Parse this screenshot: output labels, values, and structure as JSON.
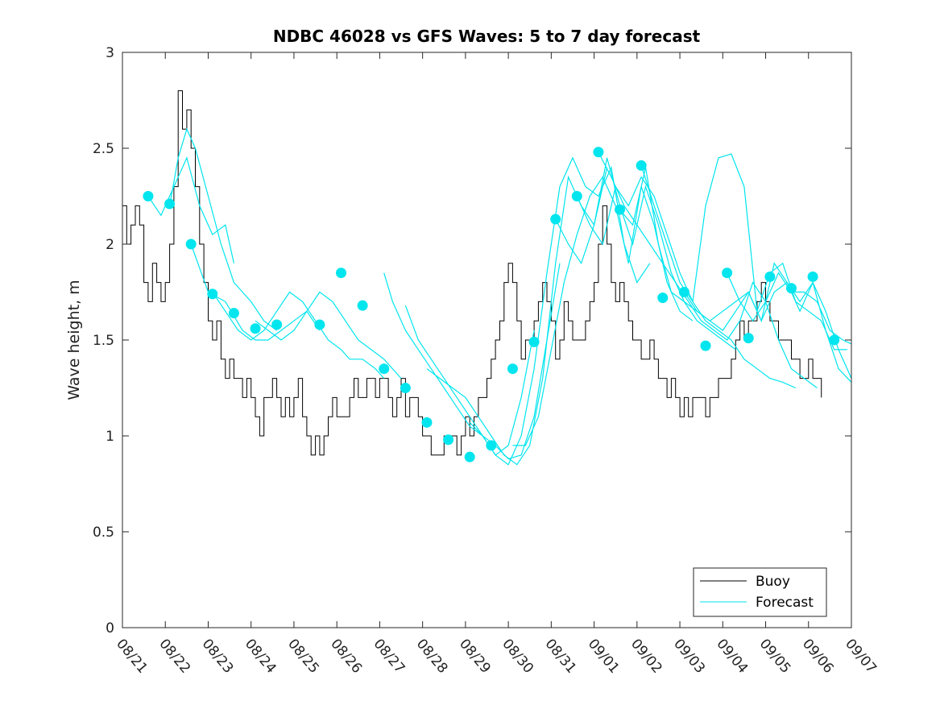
{
  "chart_data": {
    "type": "line",
    "title": "NDBC 46028 vs GFS Waves: 5 to 7 day forecast",
    "xlabel": "",
    "ylabel": "Wave height, m",
    "xlim": [
      0,
      17
    ],
    "ylim": [
      0,
      3
    ],
    "x_unit": "days since 08/21",
    "x_ticks": [
      0,
      1,
      2,
      3,
      4,
      5,
      6,
      7,
      8,
      9,
      10,
      11,
      12,
      13,
      14,
      15,
      16,
      17
    ],
    "x_tick_labels": [
      "08/21",
      "08/22",
      "08/23",
      "08/24",
      "08/25",
      "08/26",
      "08/27",
      "08/28",
      "08/29",
      "08/30",
      "08/31",
      "09/01",
      "09/02",
      "09/03",
      "09/04",
      "09/05",
      "09/06",
      "09/07"
    ],
    "y_ticks": [
      0,
      0.5,
      1,
      1.5,
      2,
      2.5,
      3
    ],
    "y_tick_labels": [
      "0",
      "0.5",
      "1",
      "1.5",
      "2",
      "2.5",
      "3"
    ],
    "grid": false,
    "legend": {
      "position": "bottom-right",
      "entries": [
        "Buoy",
        "Forecast"
      ]
    },
    "colors": {
      "buoy": "#000000",
      "forecast": "#00e5ee",
      "axis": "#262626"
    },
    "buoy": {
      "name": "Buoy",
      "x": [
        0,
        0.1,
        0.2,
        0.3,
        0.4,
        0.5,
        0.6,
        0.7,
        0.8,
        0.9,
        1.0,
        1.1,
        1.2,
        1.3,
        1.4,
        1.5,
        1.6,
        1.7,
        1.8,
        1.9,
        2.0,
        2.1,
        2.2,
        2.3,
        2.4,
        2.5,
        2.6,
        2.7,
        2.8,
        2.9,
        3.0,
        3.1,
        3.2,
        3.3,
        3.4,
        3.5,
        3.6,
        3.7,
        3.8,
        3.9,
        4.0,
        4.1,
        4.2,
        4.3,
        4.4,
        4.5,
        4.6,
        4.7,
        4.8,
        4.9,
        5.0,
        5.1,
        5.2,
        5.3,
        5.4,
        5.5,
        5.6,
        5.7,
        5.8,
        5.9,
        6.0,
        6.1,
        6.2,
        6.3,
        6.4,
        6.5,
        6.6,
        6.7,
        6.8,
        6.9,
        7.0,
        7.1,
        7.2,
        7.3,
        7.4,
        7.5,
        7.6,
        7.7,
        7.8,
        7.9,
        8.0,
        8.1,
        8.2,
        8.3,
        8.4,
        8.5,
        8.6,
        8.7,
        8.8,
        8.9,
        9.0,
        9.1,
        9.2,
        9.3,
        9.4,
        9.5,
        9.6,
        9.7,
        9.8,
        9.9,
        10.0,
        10.1,
        10.2,
        10.3,
        10.4,
        10.5,
        10.6,
        10.7,
        10.8,
        10.9,
        11.0,
        11.1,
        11.2,
        11.3,
        11.4,
        11.5,
        11.6,
        11.7,
        11.8,
        11.9,
        12.0,
        12.1,
        12.2,
        12.3,
        12.4,
        12.5,
        12.6,
        12.7,
        12.8,
        12.9,
        13.0,
        13.1,
        13.2,
        13.3,
        13.4,
        13.5,
        13.6,
        13.7,
        13.8,
        13.9,
        14.0,
        14.1,
        14.2,
        14.3,
        14.4,
        14.5,
        14.6,
        14.7,
        14.8,
        14.9,
        15.0,
        15.1,
        15.2,
        15.3,
        15.4,
        15.5,
        15.6,
        15.7,
        15.8,
        15.9,
        16.0,
        16.1,
        16.2,
        16.3
      ],
      "y": [
        2.2,
        2.0,
        2.1,
        2.2,
        2.1,
        1.8,
        1.7,
        1.9,
        1.8,
        1.7,
        1.8,
        2.0,
        2.3,
        2.8,
        2.6,
        2.7,
        2.5,
        2.3,
        2.0,
        1.8,
        1.6,
        1.5,
        1.6,
        1.4,
        1.3,
        1.4,
        1.3,
        1.3,
        1.2,
        1.3,
        1.2,
        1.1,
        1.0,
        1.2,
        1.2,
        1.3,
        1.2,
        1.1,
        1.2,
        1.1,
        1.2,
        1.3,
        1.1,
        1.0,
        0.9,
        1.0,
        0.9,
        1.0,
        1.1,
        1.2,
        1.1,
        1.1,
        1.1,
        1.2,
        1.3,
        1.2,
        1.2,
        1.3,
        1.3,
        1.2,
        1.3,
        1.3,
        1.2,
        1.1,
        1.2,
        1.3,
        1.1,
        1.2,
        1.2,
        1.1,
        1.0,
        1.0,
        0.9,
        0.9,
        0.9,
        1.0,
        1.0,
        1.0,
        0.9,
        1.0,
        1.1,
        1.0,
        1.1,
        1.2,
        1.2,
        1.3,
        1.4,
        1.5,
        1.6,
        1.8,
        1.9,
        1.8,
        1.6,
        1.4,
        1.5,
        1.5,
        1.6,
        1.7,
        1.8,
        1.7,
        1.6,
        1.4,
        1.5,
        1.7,
        1.6,
        1.5,
        1.5,
        1.5,
        1.6,
        1.7,
        1.8,
        2.0,
        2.2,
        2.0,
        1.8,
        1.7,
        1.8,
        1.7,
        1.6,
        1.5,
        1.5,
        1.4,
        1.4,
        1.5,
        1.4,
        1.3,
        1.3,
        1.2,
        1.3,
        1.2,
        1.1,
        1.2,
        1.1,
        1.2,
        1.2,
        1.2,
        1.1,
        1.2,
        1.2,
        1.3,
        1.3,
        1.3,
        1.4,
        1.5,
        1.6,
        1.5,
        1.6,
        1.6,
        1.7,
        1.8,
        1.7,
        1.6,
        1.6,
        1.5,
        1.5,
        1.5,
        1.4,
        1.4,
        1.3,
        1.3,
        1.4,
        1.3,
        1.3,
        1.2
      ]
    },
    "forecast_runs": [
      {
        "name": "Forecast",
        "x": [
          0.6,
          0.9,
          1.2,
          1.5,
          1.8,
          2.1,
          2.4,
          2.6
        ],
        "y": [
          2.25,
          2.15,
          2.3,
          2.45,
          2.2,
          2.05,
          2.1,
          1.9
        ]
      },
      {
        "name": "Forecast",
        "x": [
          1.1,
          1.3,
          1.5,
          1.7,
          2.0,
          2.3,
          2.6,
          3.0,
          3.3,
          3.6
        ],
        "y": [
          2.2,
          2.45,
          2.6,
          2.5,
          2.25,
          2.0,
          1.8,
          1.7,
          1.6,
          1.55
        ]
      },
      {
        "name": "Forecast",
        "x": [
          1.6,
          2.0,
          2.4,
          2.8,
          3.1,
          3.4,
          3.7,
          4.0,
          4.3,
          4.6
        ],
        "y": [
          2.0,
          1.75,
          1.7,
          1.55,
          1.5,
          1.5,
          1.55,
          1.6,
          1.65,
          1.55
        ]
      },
      {
        "name": "Forecast",
        "x": [
          2.1,
          2.4,
          2.7,
          3.0,
          3.3,
          3.6,
          3.9,
          4.2,
          4.5,
          4.8,
          5.1,
          5.3,
          5.6,
          5.9,
          6.1
        ],
        "y": [
          1.75,
          1.65,
          1.55,
          1.5,
          1.55,
          1.65,
          1.75,
          1.7,
          1.6,
          1.5,
          1.45,
          1.4,
          1.4,
          1.35,
          1.3
        ]
      },
      {
        "name": "Forecast",
        "x": [
          3.1,
          3.4,
          3.7,
          4.0,
          4.3,
          4.6,
          4.9,
          5.2,
          5.5,
          5.8,
          6.1,
          6.5
        ],
        "y": [
          1.6,
          1.55,
          1.5,
          1.55,
          1.65,
          1.75,
          1.7,
          1.6,
          1.5,
          1.45,
          1.4,
          1.3
        ]
      },
      {
        "name": "Forecast",
        "x": [
          6.1,
          6.3,
          6.6,
          6.9,
          7.2,
          7.5,
          7.8,
          8.1,
          8.4,
          8.7,
          9.0,
          9.3,
          9.6
        ],
        "y": [
          1.85,
          1.7,
          1.55,
          1.45,
          1.35,
          1.25,
          1.15,
          1.05,
          1.0,
          0.9,
          0.95,
          1.2,
          1.55
        ]
      },
      {
        "name": "Forecast",
        "x": [
          6.6,
          6.9,
          7.2,
          7.5,
          7.8,
          8.1,
          8.4,
          8.7,
          9.0,
          9.3,
          9.6,
          9.9,
          10.2
        ],
        "y": [
          1.68,
          1.5,
          1.4,
          1.3,
          1.2,
          1.1,
          1.0,
          0.95,
          0.88,
          0.9,
          1.1,
          1.5,
          1.9
        ]
      },
      {
        "name": "Forecast",
        "x": [
          7.1,
          7.4,
          7.7,
          8.0,
          8.3,
          8.6,
          8.9,
          9.2,
          9.5,
          9.8,
          10.1,
          10.4,
          10.7,
          11.0,
          11.3
        ],
        "y": [
          1.35,
          1.3,
          1.25,
          1.2,
          1.1,
          1.0,
          0.9,
          0.85,
          0.95,
          1.3,
          1.9,
          2.35,
          2.2,
          2.1,
          2.4
        ]
      },
      {
        "name": "Forecast",
        "x": [
          8.1,
          8.4,
          8.7,
          9.0,
          9.3,
          9.6,
          9.9,
          10.2,
          10.5,
          10.8,
          11.1,
          11.4,
          11.7,
          12.0,
          12.3
        ],
        "y": [
          1.07,
          1.0,
          0.9,
          0.85,
          1.0,
          1.35,
          1.85,
          2.3,
          2.45,
          2.3,
          2.25,
          2.4,
          2.0,
          1.8,
          1.9
        ]
      },
      {
        "name": "Forecast",
        "x": [
          9.1,
          9.4,
          9.7,
          10.0,
          10.3,
          10.6,
          10.9,
          11.2,
          11.5,
          11.8,
          12.1,
          12.4,
          12.7,
          13.0,
          13.3
        ],
        "y": [
          0.95,
          0.95,
          1.1,
          1.45,
          1.8,
          2.05,
          2.25,
          2.35,
          2.2,
          1.9,
          2.3,
          2.1,
          1.8,
          1.65,
          1.6
        ]
      },
      {
        "name": "Forecast",
        "x": [
          10.1,
          10.4,
          10.7,
          11.0,
          11.3,
          11.6,
          11.9,
          12.2,
          12.5,
          12.8,
          13.1,
          13.4,
          13.7,
          14.0,
          14.3
        ],
        "y": [
          2.13,
          2.0,
          1.9,
          2.1,
          2.45,
          2.2,
          2.0,
          2.3,
          2.1,
          1.85,
          1.7,
          1.6,
          1.55,
          1.5,
          1.45
        ]
      },
      {
        "name": "Forecast",
        "x": [
          10.6,
          10.9,
          11.2,
          11.5,
          11.8,
          12.1,
          12.4,
          12.7,
          13.0,
          13.3,
          13.6,
          13.9,
          14.2,
          14.5,
          14.8,
          15.1,
          15.4,
          15.7
        ],
        "y": [
          2.25,
          2.1,
          2.0,
          2.3,
          2.2,
          2.35,
          2.25,
          2.05,
          1.85,
          1.7,
          1.6,
          1.55,
          1.5,
          1.4,
          1.35,
          1.3,
          1.28,
          1.25
        ]
      },
      {
        "name": "Forecast",
        "x": [
          11.1,
          11.4,
          11.7,
          12.0,
          12.3,
          12.6,
          12.9,
          13.2,
          13.5,
          13.8,
          14.1,
          14.4,
          14.7,
          15.0,
          15.3,
          15.6,
          15.9,
          16.2
        ],
        "y": [
          2.48,
          2.35,
          2.2,
          2.1,
          2.0,
          1.9,
          1.8,
          1.7,
          1.6,
          1.55,
          1.5,
          1.6,
          1.8,
          1.7,
          1.5,
          1.35,
          1.3,
          1.25
        ]
      },
      {
        "name": "Forecast",
        "x": [
          11.6,
          11.9,
          12.2,
          12.5,
          12.8,
          13.1,
          13.4,
          13.7,
          14.0,
          14.3,
          14.6,
          14.9,
          15.2,
          15.5,
          15.8,
          16.1,
          16.4,
          16.7,
          17.0
        ],
        "y": [
          2.18,
          2.1,
          2.4,
          2.0,
          1.75,
          1.7,
          1.65,
          1.6,
          1.55,
          1.65,
          1.75,
          1.6,
          1.9,
          1.8,
          1.7,
          1.8,
          1.65,
          1.45,
          1.3
        ]
      },
      {
        "name": "Forecast",
        "x": [
          12.1,
          12.4,
          12.7,
          13.0,
          13.3,
          13.6,
          13.9,
          14.2,
          14.5,
          14.8,
          15.1,
          15.4,
          15.7,
          16.0,
          16.3,
          16.6,
          16.9
        ],
        "y": [
          2.41,
          2.2,
          2.0,
          1.8,
          1.7,
          2.2,
          2.45,
          2.47,
          2.3,
          1.65,
          1.85,
          1.9,
          1.7,
          1.65,
          1.6,
          1.45,
          1.45
        ]
      },
      {
        "name": "Forecast",
        "x": [
          13.1,
          13.4,
          13.7,
          14.0,
          14.3,
          14.6,
          14.9,
          15.2,
          15.5,
          15.8,
          16.1,
          16.4,
          16.7,
          17.0
        ],
        "y": [
          1.75,
          1.65,
          1.6,
          1.65,
          1.7,
          1.75,
          1.6,
          1.75,
          1.8,
          1.65,
          1.8,
          1.55,
          1.35,
          1.28
        ]
      },
      {
        "name": "Forecast",
        "x": [
          14.1,
          14.4,
          14.7,
          15.0,
          15.3,
          15.6,
          15.9,
          16.2,
          16.5,
          16.8,
          17.0
        ],
        "y": [
          1.85,
          1.7,
          1.6,
          1.7,
          1.85,
          1.75,
          1.75,
          1.7,
          1.55,
          1.5,
          1.48
        ]
      }
    ],
    "forecast_markers": {
      "x": [
        0.6,
        1.1,
        1.6,
        2.1,
        2.6,
        3.1,
        3.6,
        4.6,
        5.1,
        5.6,
        6.1,
        6.6,
        7.1,
        7.6,
        8.1,
        8.6,
        9.1,
        9.6,
        10.1,
        10.6,
        11.1,
        11.6,
        12.1,
        12.6,
        13.1,
        13.6,
        14.1,
        14.6,
        15.1,
        15.6,
        16.1,
        16.6
      ],
      "y": [
        2.25,
        2.21,
        2.0,
        1.74,
        1.64,
        1.56,
        1.58,
        1.58,
        1.85,
        1.68,
        1.35,
        1.25,
        1.07,
        0.98,
        0.89,
        0.95,
        1.35,
        1.49,
        2.13,
        2.25,
        2.48,
        2.18,
        2.41,
        1.72,
        1.75,
        1.47,
        1.85,
        1.51,
        1.83,
        1.77,
        1.83,
        1.5
      ]
    }
  }
}
